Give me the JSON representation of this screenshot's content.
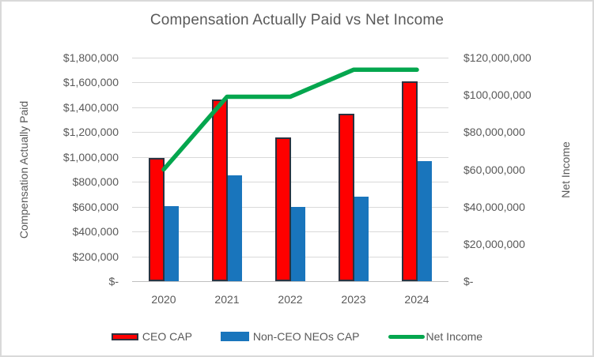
{
  "title": "Compensation Actually Paid vs Net Income",
  "axes": {
    "left": {
      "title": "Compensation Actually Paid",
      "ticks": [
        "$1,800,000",
        "$1,600,000",
        "$1,400,000",
        "$1,200,000",
        "$1,000,000",
        "$800,000",
        "$600,000",
        "$400,000",
        "$200,000",
        "$-"
      ]
    },
    "right": {
      "title": "Net Income",
      "ticks": [
        "$120,000,000",
        "$100,000,000",
        "$80,000,000",
        "$60,000,000",
        "$40,000,000",
        "$20,000,000",
        "$-"
      ]
    }
  },
  "legend": {
    "ceo_label": "CEO CAP",
    "neo_label": "Non-CEO NEOs CAP",
    "net_label": "Net Income"
  },
  "colors": {
    "ceo_fill": "#FF0000",
    "ceo_border": "#2B3240",
    "neo_fill": "#1975BC",
    "net_line": "#04A64E",
    "grid": "#D9D9D9",
    "axis_text": "#595959"
  },
  "chart_data": {
    "type": "bar",
    "subtype": "grouped bars with secondary-axis line",
    "title": "Compensation Actually Paid vs Net Income",
    "categories": [
      "2020",
      "2021",
      "2022",
      "2023",
      "2024"
    ],
    "series": [
      {
        "name": "CEO CAP",
        "type": "bar",
        "axis": "left",
        "values": [
          990000,
          1465000,
          1160000,
          1350000,
          1610000
        ]
      },
      {
        "name": "Non-CEO NEOs CAP",
        "type": "bar",
        "axis": "left",
        "values": [
          605000,
          855000,
          595000,
          680000,
          965000
        ]
      },
      {
        "name": "Net Income",
        "type": "line",
        "axis": "right",
        "values": [
          60000000,
          99000000,
          99000000,
          113500000,
          113500000
        ]
      }
    ],
    "left_axis_label": "Compensation Actually Paid",
    "right_axis_label": "Net Income",
    "left_ylim": [
      0,
      1800000
    ],
    "right_ylim": [
      0,
      120000000
    ],
    "left_tick_step": 200000,
    "right_tick_step": 20000000,
    "grid": true,
    "legend_position": "bottom"
  }
}
